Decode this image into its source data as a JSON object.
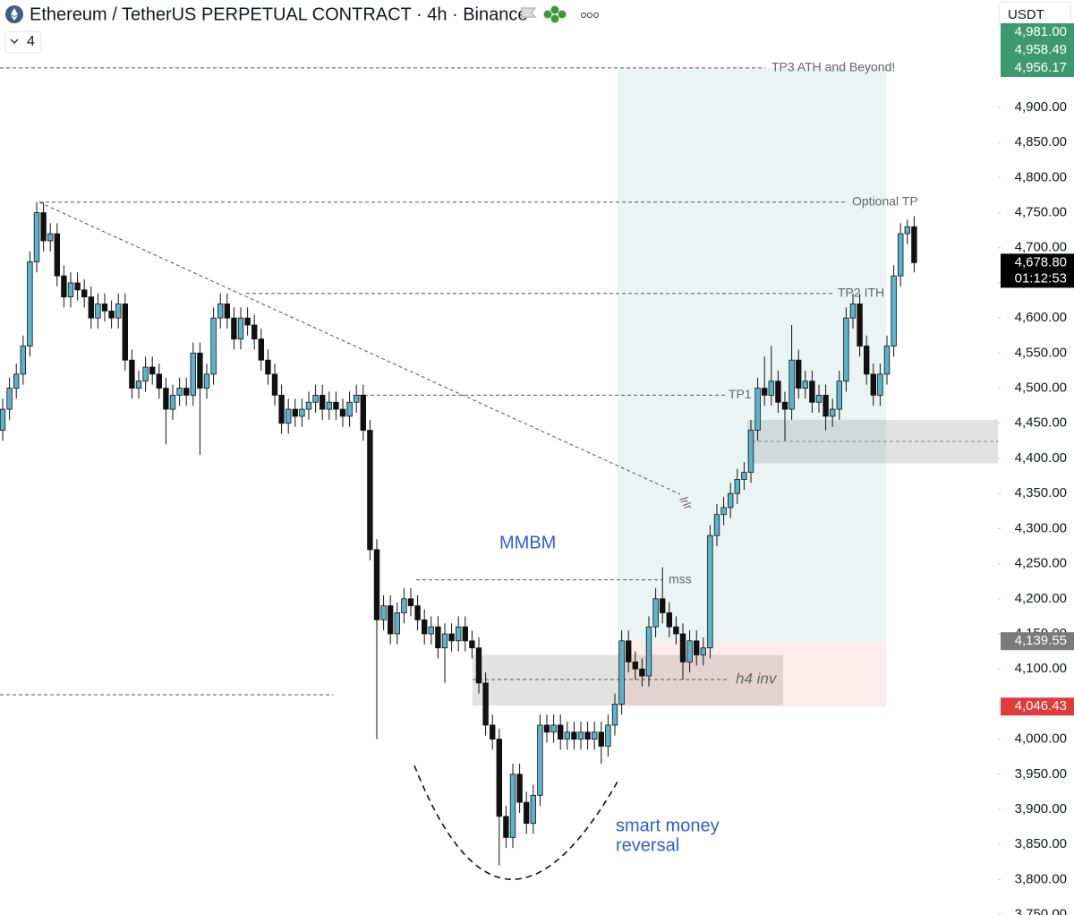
{
  "chart_data": {
    "type": "candlestick",
    "title": "Ethereum / TetherUS PERPETUAL CONTRACT · 4h · Binance",
    "interval": "4",
    "currency": "USDT",
    "up_color": "#5ab4cc",
    "down_color": "#111111",
    "ylim": [
      3749.5,
      5053
    ],
    "yticks": [
      {
        "value": 3750,
        "label": "3,750.00"
      },
      {
        "value": 3800,
        "label": "3,800.00"
      },
      {
        "value": 3850,
        "label": "3,850.00"
      },
      {
        "value": 3900,
        "label": "3,900.00"
      },
      {
        "value": 3950,
        "label": "3,950.00"
      },
      {
        "value": 4000,
        "label": "4,000.00"
      },
      {
        "value": 4050,
        "label": "4,050.00"
      },
      {
        "value": 4100,
        "label": "4,100.00"
      },
      {
        "value": 4150,
        "label": "4,150.00"
      },
      {
        "value": 4200,
        "label": "4,200.00"
      },
      {
        "value": 4250,
        "label": "4,250.00"
      },
      {
        "value": 4300,
        "label": "4,300.00"
      },
      {
        "value": 4350,
        "label": "4,350.00"
      },
      {
        "value": 4400,
        "label": "4,400.00"
      },
      {
        "value": 4450,
        "label": "4,450.00"
      },
      {
        "value": 4500,
        "label": "4,500.00"
      },
      {
        "value": 4550,
        "label": "4,550.00"
      },
      {
        "value": 4600,
        "label": "4,600.00"
      },
      {
        "value": 4650,
        "label": "4,650.00"
      },
      {
        "value": 4700,
        "label": "4,700.00"
      },
      {
        "value": 4750,
        "label": "4,750.00"
      },
      {
        "value": 4800,
        "label": "4,800.00"
      },
      {
        "value": 4850,
        "label": "4,850.00"
      },
      {
        "value": 4900,
        "label": "4,900.00"
      }
    ],
    "price_labels": [
      {
        "value": 4981.0,
        "label": "4,981.00",
        "color": "#3d9970"
      },
      {
        "value": 4958.49,
        "label": "4,958.49",
        "color": "#3d9970"
      },
      {
        "value": 4956.17,
        "label": "4,956.17",
        "color": "#3d9970"
      },
      {
        "value": 4678.8,
        "label": "4,678.80",
        "color": "#000000"
      },
      {
        "value": 4139.55,
        "label": "4,139.55",
        "color": "#7a7a7a"
      },
      {
        "value": 4046.43,
        "label": "4,046.43",
        "color": "#e03b3b"
      }
    ],
    "countdown": "01:12:53",
    "open": [
      4440,
      4470,
      4500,
      4520,
      4560,
      4680,
      4750,
      4710,
      4720,
      4660,
      4630,
      4650,
      4640,
      4630,
      4600,
      4620,
      4610,
      4600,
      4620,
      4540,
      4500,
      4510,
      4530,
      4520,
      4500,
      4470,
      4490,
      4500,
      4490,
      4550,
      4500,
      4520,
      4600,
      4620,
      4600,
      4570,
      4600,
      4590,
      4570,
      4540,
      4520,
      4490,
      4450,
      4470,
      4460,
      4470,
      4480,
      4490,
      4470,
      4480,
      4470,
      4460,
      4480,
      4490,
      4440,
      4270,
      4170,
      4190,
      4150,
      4180,
      4200,
      4190,
      4170,
      4150,
      4160,
      4130,
      4150,
      4140,
      4160,
      4140,
      4130,
      4080,
      4020,
      4000,
      3890,
      3860,
      3950,
      3910,
      3880,
      3920,
      4020,
      4010,
      4020,
      4000,
      4010,
      4000,
      4010,
      4000,
      4010,
      3990,
      4020,
      4050,
      4140,
      4110,
      4100,
      4090,
      4160,
      4200,
      4180,
      4160,
      4150,
      4110,
      4140,
      4120,
      4130,
      4290,
      4320,
      4330,
      4350,
      4370,
      4380,
      4440,
      4500,
      4490,
      4510,
      4480,
      4470,
      4540,
      4500,
      4510,
      4480,
      4490,
      4460,
      4470,
      4510,
      4600,
      4620,
      4560,
      4520,
      4490,
      4520,
      4560,
      4660,
      4720,
      4730
    ],
    "high": [
      4485,
      4515,
      4535,
      4575,
      4695,
      4765,
      4765,
      4735,
      4735,
      4675,
      4665,
      4665,
      4655,
      4645,
      4635,
      4635,
      4625,
      4635,
      4635,
      4555,
      4525,
      4545,
      4545,
      4535,
      4515,
      4505,
      4515,
      4515,
      4565,
      4565,
      4535,
      4615,
      4635,
      4635,
      4615,
      4615,
      4615,
      4605,
      4585,
      4555,
      4535,
      4505,
      4485,
      4485,
      4485,
      4495,
      4505,
      4505,
      4495,
      4495,
      4485,
      4495,
      4505,
      4505,
      4455,
      4285,
      4205,
      4205,
      4195,
      4215,
      4215,
      4205,
      4185,
      4175,
      4175,
      4165,
      4165,
      4175,
      4175,
      4155,
      4145,
      4095,
      4035,
      4015,
      3905,
      3965,
      3965,
      3925,
      3935,
      4035,
      4035,
      4035,
      4035,
      4025,
      4025,
      4025,
      4025,
      4025,
      4025,
      4035,
      4065,
      4155,
      4155,
      4125,
      4115,
      4175,
      4215,
      4245,
      4195,
      4175,
      4165,
      4155,
      4155,
      4145,
      4305,
      4335,
      4345,
      4365,
      4385,
      4395,
      4455,
      4515,
      4545,
      4560,
      4525,
      4495,
      4590,
      4555,
      4525,
      4525,
      4505,
      4505,
      4485,
      4525,
      4615,
      4635,
      4635,
      4575,
      4535,
      4535,
      4575,
      4675,
      4735,
      4740,
      4745
    ],
    "low": [
      4425,
      4455,
      4485,
      4505,
      4545,
      4665,
      4695,
      4695,
      4645,
      4615,
      4615,
      4625,
      4615,
      4585,
      4585,
      4595,
      4585,
      4585,
      4525,
      4485,
      4485,
      4495,
      4505,
      4485,
      4420,
      4455,
      4475,
      4475,
      4475,
      4405,
      4485,
      4505,
      4585,
      4585,
      4555,
      4555,
      4575,
      4555,
      4525,
      4505,
      4475,
      4435,
      4435,
      4445,
      4445,
      4455,
      4465,
      4455,
      4455,
      4455,
      4445,
      4445,
      4465,
      4425,
      4255,
      4000,
      4155,
      4135,
      4135,
      4165,
      4175,
      4155,
      4135,
      4135,
      4115,
      4080,
      4125,
      4125,
      4125,
      4115,
      4065,
      4005,
      3985,
      3820,
      3845,
      3845,
      3895,
      3865,
      3865,
      3905,
      3995,
      3995,
      3985,
      3985,
      3985,
      3985,
      3985,
      3985,
      3965,
      3975,
      4005,
      4035,
      4095,
      4085,
      4075,
      4075,
      4145,
      4165,
      4145,
      4135,
      4085,
      4095,
      4105,
      4105,
      4115,
      4275,
      4305,
      4315,
      4335,
      4355,
      4365,
      4425,
      4475,
      4475,
      4465,
      4425,
      4455,
      4485,
      4485,
      4465,
      4465,
      4440,
      4445,
      4455,
      4495,
      4585,
      4545,
      4505,
      4475,
      4475,
      4505,
      4545,
      4645,
      4705,
      4665
    ],
    "close": [
      4470,
      4500,
      4520,
      4560,
      4680,
      4750,
      4710,
      4720,
      4660,
      4630,
      4650,
      4640,
      4630,
      4600,
      4620,
      4610,
      4600,
      4620,
      4540,
      4500,
      4510,
      4530,
      4520,
      4500,
      4470,
      4490,
      4500,
      4490,
      4550,
      4500,
      4520,
      4600,
      4620,
      4600,
      4570,
      4600,
      4590,
      4570,
      4540,
      4520,
      4490,
      4450,
      4470,
      4460,
      4470,
      4480,
      4490,
      4470,
      4480,
      4470,
      4460,
      4480,
      4490,
      4440,
      4270,
      4170,
      4190,
      4150,
      4180,
      4200,
      4190,
      4170,
      4150,
      4160,
      4130,
      4150,
      4140,
      4160,
      4140,
      4130,
      4080,
      4020,
      4000,
      3890,
      3860,
      3950,
      3910,
      3880,
      3920,
      4020,
      4010,
      4020,
      4000,
      4010,
      4000,
      4010,
      4000,
      4010,
      3990,
      4020,
      4050,
      4140,
      4110,
      4100,
      4090,
      4160,
      4200,
      4180,
      4160,
      4150,
      4110,
      4140,
      4120,
      4130,
      4290,
      4320,
      4330,
      4350,
      4370,
      4380,
      4440,
      4500,
      4490,
      4510,
      4480,
      4470,
      4540,
      4500,
      4510,
      4480,
      4490,
      4460,
      4470,
      4510,
      4600,
      4620,
      4560,
      4520,
      4490,
      4520,
      4560,
      4660,
      4720,
      4730,
      4678.8
    ],
    "levels": [
      {
        "text": "TP3 ATH and Beyond!",
        "value": 4956.17
      },
      {
        "text": "Optional TP",
        "value": 4765
      },
      {
        "text": "TP2 ITH",
        "value": 4635
      },
      {
        "text": "TP1",
        "value": 4490
      },
      {
        "text": "mss",
        "value": 4227
      },
      {
        "text": "h4 inv",
        "value": 4085
      }
    ],
    "zones": [
      {
        "high": 4455,
        "low": 4393
      },
      {
        "high": 4120,
        "low": 4048
      }
    ],
    "notes": [
      "lrlr",
      "MMBM",
      "smart money",
      "reversal"
    ]
  }
}
